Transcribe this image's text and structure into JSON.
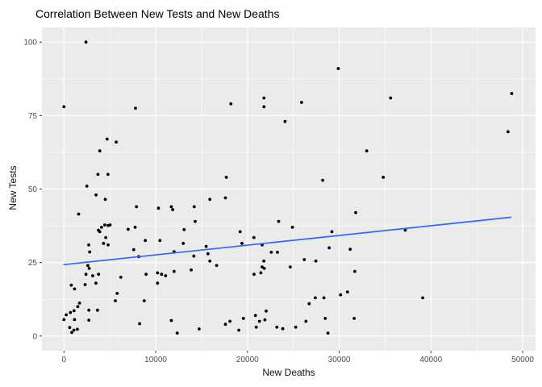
{
  "chart_data": {
    "type": "scatter",
    "title": "Correlation Between New Tests and New Deaths",
    "xlabel": "New Deaths",
    "ylabel": "New Tests",
    "x_ticks": [
      0,
      10000,
      20000,
      30000,
      40000,
      50000
    ],
    "y_ticks": [
      0,
      25,
      50,
      75,
      100
    ],
    "x_minor_ticks": [
      5000,
      15000,
      25000,
      35000,
      45000
    ],
    "y_minor_ticks": [
      12.5,
      37.5,
      62.5,
      87.5
    ],
    "xlim": [
      -2400,
      51400
    ],
    "ylim": [
      -5,
      105
    ],
    "grid": true,
    "legend": false,
    "colors": {
      "panel_bg": "#EBEBEB",
      "grid": "#FFFFFF",
      "point": "#000000",
      "trend": "#3366FF",
      "tick_label": "#4D4D4D",
      "tick_mark": "#333333",
      "title": "#000000"
    },
    "trend_line": {
      "x1": 0,
      "y1": 24.3,
      "x2": 48700,
      "y2": 40.4
    },
    "points": [
      [
        2400,
        100
      ],
      [
        0,
        78
      ],
      [
        7800,
        77.5
      ],
      [
        29900,
        91
      ],
      [
        18200,
        79
      ],
      [
        21800,
        81
      ],
      [
        21800,
        78
      ],
      [
        25900,
        79.5
      ],
      [
        24100,
        73
      ],
      [
        35600,
        81
      ],
      [
        48800,
        82.5
      ],
      [
        48400,
        69.5
      ],
      [
        4700,
        67
      ],
      [
        5700,
        66
      ],
      [
        3900,
        63
      ],
      [
        3700,
        55
      ],
      [
        4800,
        55
      ],
      [
        2500,
        51
      ],
      [
        3500,
        48
      ],
      [
        4500,
        46.5
      ],
      [
        7900,
        44
      ],
      [
        10300,
        43.5
      ],
      [
        11700,
        44
      ],
      [
        11850,
        43
      ],
      [
        14200,
        44
      ],
      [
        1600,
        41.5
      ],
      [
        14300,
        39
      ],
      [
        13100,
        36.2
      ],
      [
        7000,
        36.3
      ],
      [
        7750,
        37
      ],
      [
        3750,
        36
      ],
      [
        3900,
        35.5
      ],
      [
        4100,
        37
      ],
      [
        4450,
        37.8
      ],
      [
        4820,
        37.6
      ],
      [
        5030,
        37.8
      ],
      [
        4550,
        33.5
      ],
      [
        33000,
        63
      ],
      [
        17700,
        54
      ],
      [
        28200,
        53
      ],
      [
        15900,
        46.5
      ],
      [
        17600,
        47
      ],
      [
        31800,
        42
      ],
      [
        23400,
        39
      ],
      [
        24900,
        37
      ],
      [
        19200,
        35.5
      ],
      [
        20700,
        33.5
      ],
      [
        29200,
        35.5
      ],
      [
        34800,
        54
      ],
      [
        37200,
        36
      ],
      [
        2700,
        31
      ],
      [
        4320,
        31.5
      ],
      [
        4820,
        31
      ],
      [
        8870,
        32.5
      ],
      [
        10460,
        32.5
      ],
      [
        13000,
        31.5
      ],
      [
        2800,
        28.6
      ],
      [
        7600,
        29.4
      ],
      [
        8150,
        27
      ],
      [
        12000,
        28.7
      ],
      [
        14150,
        27.2
      ],
      [
        15500,
        30.5
      ],
      [
        2600,
        24
      ],
      [
        2750,
        23
      ],
      [
        2400,
        21
      ],
      [
        3130,
        20.5
      ],
      [
        3770,
        21
      ],
      [
        6200,
        20
      ],
      [
        8950,
        21
      ],
      [
        10200,
        21.5
      ],
      [
        10640,
        21
      ],
      [
        11080,
        20.5
      ],
      [
        12000,
        22
      ],
      [
        13860,
        22.5
      ],
      [
        800,
        17.3
      ],
      [
        1150,
        16
      ],
      [
        2300,
        17.5
      ],
      [
        3480,
        18
      ],
      [
        10200,
        18
      ],
      [
        5800,
        14.5
      ],
      [
        5600,
        12
      ],
      [
        8750,
        12
      ],
      [
        1500,
        10
      ],
      [
        1700,
        11.2
      ],
      [
        250,
        7.2
      ],
      [
        700,
        8
      ],
      [
        1100,
        8.6
      ],
      [
        0,
        5.6
      ],
      [
        1150,
        5.6
      ],
      [
        2720,
        5.4
      ],
      [
        2720,
        8.8
      ],
      [
        3660,
        8.8
      ],
      [
        620,
        2.9
      ],
      [
        850,
        1.2
      ],
      [
        1080,
        2
      ],
      [
        1460,
        2.3
      ],
      [
        8250,
        4.2
      ],
      [
        11700,
        5.3
      ],
      [
        12340,
        1
      ],
      [
        14730,
        2.4
      ],
      [
        19400,
        31.5
      ],
      [
        21600,
        31
      ],
      [
        22600,
        28.5
      ],
      [
        23270,
        28.5
      ],
      [
        15700,
        28
      ],
      [
        15900,
        25.5
      ],
      [
        16640,
        24
      ],
      [
        26200,
        26
      ],
      [
        27450,
        25.5
      ],
      [
        28900,
        30
      ],
      [
        31200,
        29.5
      ],
      [
        31700,
        22
      ],
      [
        21780,
        25.5
      ],
      [
        21600,
        23.5
      ],
      [
        21840,
        23
      ],
      [
        24670,
        23.5
      ],
      [
        20720,
        21
      ],
      [
        21460,
        21.5
      ],
      [
        26720,
        11
      ],
      [
        27390,
        13
      ],
      [
        28330,
        13
      ],
      [
        30140,
        14
      ],
      [
        30900,
        15
      ],
      [
        19560,
        6
      ],
      [
        20870,
        7
      ],
      [
        22040,
        8.5
      ],
      [
        21310,
        5
      ],
      [
        21900,
        5.5
      ],
      [
        18090,
        5
      ],
      [
        17600,
        4
      ],
      [
        19060,
        2
      ],
      [
        20960,
        3
      ],
      [
        23210,
        3
      ],
      [
        23850,
        2.5
      ],
      [
        25260,
        3
      ],
      [
        26370,
        5
      ],
      [
        28480,
        6
      ],
      [
        28770,
        1
      ],
      [
        31630,
        6
      ],
      [
        39100,
        13
      ]
    ]
  }
}
